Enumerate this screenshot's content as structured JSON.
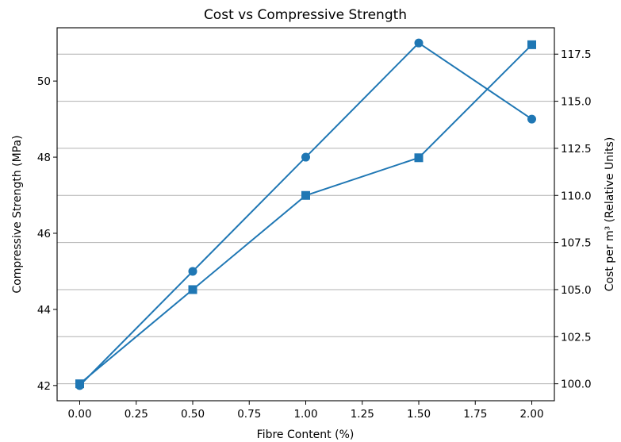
{
  "chart_data": {
    "type": "line",
    "title": "Cost vs Compressive Strength",
    "xlabel": "Fibre Content (%)",
    "ylabel": "Compressive Strength (MPa)",
    "y2label": "Cost per m³ (Relative Units)",
    "x": [
      0.0,
      0.5,
      1.0,
      1.5,
      2.0
    ],
    "xlim": [
      -0.1,
      2.1
    ],
    "ylim": [
      41.6,
      51.4
    ],
    "y2lim": [
      99.1,
      118.9
    ],
    "xticks": [
      "0.00",
      "0.25",
      "0.50",
      "0.75",
      "1.00",
      "1.25",
      "1.50",
      "1.75",
      "2.00"
    ],
    "yticks": [
      "42",
      "44",
      "46",
      "48",
      "50"
    ],
    "y2ticks": [
      "100.0",
      "102.5",
      "105.0",
      "107.5",
      "110.0",
      "112.5",
      "115.0",
      "117.5"
    ],
    "grid": "horizontal lines at right-axis ticks",
    "color": "#1f77b4",
    "series": [
      {
        "axis": "left",
        "marker": "circle",
        "values": [
          42,
          45,
          48,
          51,
          49
        ]
      },
      {
        "axis": "right",
        "marker": "square",
        "values": [
          100,
          105,
          110,
          112,
          118
        ]
      }
    ]
  }
}
